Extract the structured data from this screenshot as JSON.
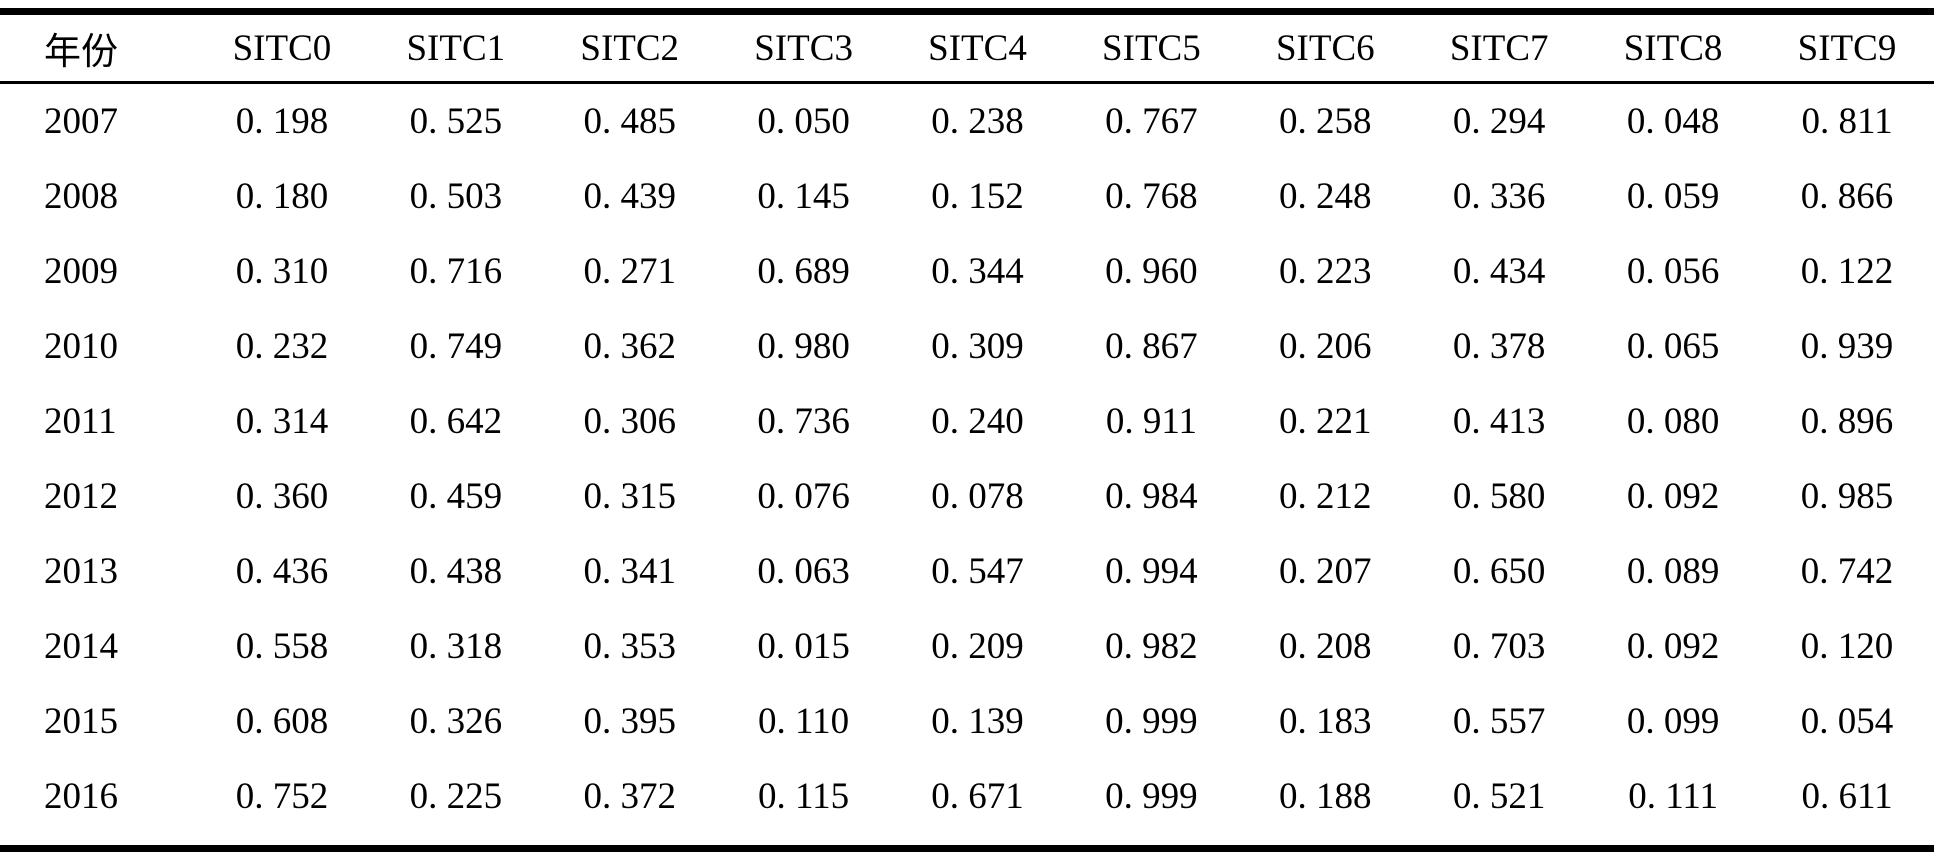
{
  "table": {
    "columns": [
      "年份",
      "SITC0",
      "SITC1",
      "SITC2",
      "SITC3",
      "SITC4",
      "SITC5",
      "SITC6",
      "SITC7",
      "SITC8",
      "SITC9"
    ],
    "rows": [
      {
        "year": "2007",
        "values": [
          "0. 198",
          "0. 525",
          "0. 485",
          "0. 050",
          "0. 238",
          "0. 767",
          "0. 258",
          "0. 294",
          "0. 048",
          "0. 811"
        ]
      },
      {
        "year": "2008",
        "values": [
          "0. 180",
          "0. 503",
          "0. 439",
          "0. 145",
          "0. 152",
          "0. 768",
          "0. 248",
          "0. 336",
          "0. 059",
          "0. 866"
        ]
      },
      {
        "year": "2009",
        "values": [
          "0. 310",
          "0. 716",
          "0. 271",
          "0. 689",
          "0. 344",
          "0. 960",
          "0. 223",
          "0. 434",
          "0. 056",
          "0. 122"
        ]
      },
      {
        "year": "2010",
        "values": [
          "0. 232",
          "0. 749",
          "0. 362",
          "0. 980",
          "0. 309",
          "0. 867",
          "0. 206",
          "0. 378",
          "0. 065",
          "0. 939"
        ]
      },
      {
        "year": "2011",
        "values": [
          "0. 314",
          "0. 642",
          "0. 306",
          "0. 736",
          "0. 240",
          "0. 911",
          "0. 221",
          "0. 413",
          "0. 080",
          "0. 896"
        ]
      },
      {
        "year": "2012",
        "values": [
          "0. 360",
          "0. 459",
          "0. 315",
          "0. 076",
          "0. 078",
          "0. 984",
          "0. 212",
          "0. 580",
          "0. 092",
          "0. 985"
        ]
      },
      {
        "year": "2013",
        "values": [
          "0. 436",
          "0. 438",
          "0. 341",
          "0. 063",
          "0. 547",
          "0. 994",
          "0. 207",
          "0. 650",
          "0. 089",
          "0. 742"
        ]
      },
      {
        "year": "2014",
        "values": [
          "0. 558",
          "0. 318",
          "0. 353",
          "0. 015",
          "0. 209",
          "0. 982",
          "0. 208",
          "0. 703",
          "0. 092",
          "0. 120"
        ]
      },
      {
        "year": "2015",
        "values": [
          "0. 608",
          "0. 326",
          "0. 395",
          "0. 110",
          "0. 139",
          "0. 999",
          "0. 183",
          "0. 557",
          "0. 099",
          "0. 054"
        ]
      },
      {
        "year": "2016",
        "values": [
          "0. 752",
          "0. 225",
          "0. 372",
          "0. 115",
          "0. 671",
          "0. 999",
          "0. 188",
          "0. 521",
          "0. 111",
          "0. 611"
        ]
      }
    ],
    "text_color": "#000000",
    "rule_color": "#000000",
    "background_color": "#ffffff"
  },
  "chart_data": {
    "type": "table",
    "title": "",
    "columns": [
      "年份",
      "SITC0",
      "SITC1",
      "SITC2",
      "SITC3",
      "SITC4",
      "SITC5",
      "SITC6",
      "SITC7",
      "SITC8",
      "SITC9"
    ],
    "x": [
      2007,
      2008,
      2009,
      2010,
      2011,
      2012,
      2013,
      2014,
      2015,
      2016
    ],
    "series": [
      {
        "name": "SITC0",
        "values": [
          0.198,
          0.18,
          0.31,
          0.232,
          0.314,
          0.36,
          0.436,
          0.558,
          0.608,
          0.752
        ]
      },
      {
        "name": "SITC1",
        "values": [
          0.525,
          0.503,
          0.716,
          0.749,
          0.642,
          0.459,
          0.438,
          0.318,
          0.326,
          0.225
        ]
      },
      {
        "name": "SITC2",
        "values": [
          0.485,
          0.439,
          0.271,
          0.362,
          0.306,
          0.315,
          0.341,
          0.353,
          0.395,
          0.372
        ]
      },
      {
        "name": "SITC3",
        "values": [
          0.05,
          0.145,
          0.689,
          0.98,
          0.736,
          0.076,
          0.063,
          0.015,
          0.11,
          0.115
        ]
      },
      {
        "name": "SITC4",
        "values": [
          0.238,
          0.152,
          0.344,
          0.309,
          0.24,
          0.078,
          0.547,
          0.209,
          0.139,
          0.671
        ]
      },
      {
        "name": "SITC5",
        "values": [
          0.767,
          0.768,
          0.96,
          0.867,
          0.911,
          0.984,
          0.994,
          0.982,
          0.999,
          0.999
        ]
      },
      {
        "name": "SITC6",
        "values": [
          0.258,
          0.248,
          0.223,
          0.206,
          0.221,
          0.212,
          0.207,
          0.208,
          0.183,
          0.188
        ]
      },
      {
        "name": "SITC7",
        "values": [
          0.294,
          0.336,
          0.434,
          0.378,
          0.413,
          0.58,
          0.65,
          0.703,
          0.557,
          0.521
        ]
      },
      {
        "name": "SITC8",
        "values": [
          0.048,
          0.059,
          0.056,
          0.065,
          0.08,
          0.092,
          0.089,
          0.092,
          0.099,
          0.111
        ]
      },
      {
        "name": "SITC9",
        "values": [
          0.811,
          0.866,
          0.122,
          0.939,
          0.896,
          0.985,
          0.742,
          0.12,
          0.054,
          0.611
        ]
      }
    ]
  }
}
